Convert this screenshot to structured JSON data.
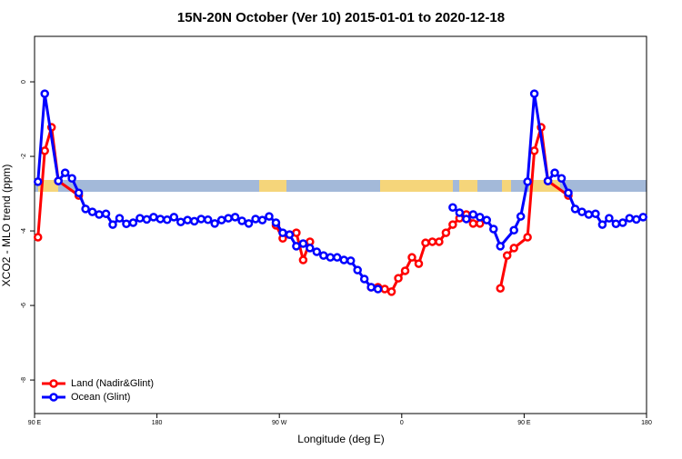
{
  "chart_data": {
    "type": "line",
    "title": "15N-20N October (Ver 10)   2015-01-01 to 2020-12-18",
    "x_label": "Longitude (deg E)",
    "y_label": "XCO2 - MLO trend (ppm)",
    "xlim": [
      90,
      540
    ],
    "ylim": [
      -8.9,
      1.22
    ],
    "xticks": [
      {
        "value": 90,
        "label": "90 E"
      },
      180,
      {
        "value": 270,
        "label": "90 W"
      },
      {
        "value": 360,
        "label": "0"
      },
      {
        "value": 450,
        "label": "90 E"
      },
      {
        "value": 540,
        "label": "180"
      }
    ],
    "yticks": [
      0,
      -2,
      -4,
      -6,
      -8
    ],
    "legend": "bottom-left",
    "series": [
      {
        "name": "Land (Nadir&Glint)",
        "color": "#ff0000",
        "x": [
          92.5,
          97.5,
          102.5,
          107.5,
          122.5,
          125,
          267.5,
          272.5,
          277.5,
          282.5,
          287.5,
          292.5,
          300,
          337.5,
          342.5,
          347.5,
          352.5,
          357.5,
          362.5,
          367.5,
          372.5,
          377.5,
          382.5,
          387.5,
          392.5,
          397.5,
          402.5,
          407.5,
          412.5,
          417.5,
          425,
          432.5,
          437.5,
          442.5,
          452.5,
          457.5,
          462.5,
          467.5,
          482.5
        ],
        "values": [
          -4.17,
          -1.85,
          -1.22,
          -2.66,
          -3.05,
          null,
          -3.85,
          -4.2,
          -4.1,
          -4.05,
          -4.78,
          -4.29,
          null,
          -5.51,
          -5.51,
          -5.56,
          -5.63,
          -5.27,
          -5.07,
          -4.71,
          -4.88,
          -4.32,
          -4.29,
          -4.29,
          -4.05,
          -3.83,
          -3.66,
          -3.56,
          -3.8,
          -3.8,
          null,
          -5.54,
          -4.66,
          -4.46,
          -4.17,
          -1.85,
          -1.22,
          -2.66,
          -3.05
        ]
      },
      {
        "name": "Ocean (Glint)",
        "color": "#0000ff",
        "x": [
          92.5,
          97.5,
          107.5,
          112.5,
          117.5,
          122.5,
          127.5,
          132.5,
          137.5,
          142.5,
          147.5,
          152.5,
          157.5,
          162.5,
          167.5,
          172.5,
          177.5,
          182.5,
          187.5,
          192.5,
          197.5,
          202.5,
          207.5,
          212.5,
          217.5,
          222.5,
          227.5,
          232.5,
          237.5,
          242.5,
          247.5,
          252.5,
          257.5,
          262.5,
          267.5,
          272.5,
          277.5,
          282.5,
          287.5,
          292.5,
          297.5,
          302.5,
          307.5,
          312.5,
          317.5,
          322.5,
          327.5,
          332.5,
          337.5,
          342.5,
          370,
          397.5,
          402.5,
          407.5,
          412.5,
          417.5,
          422.5,
          427.5,
          432.5,
          442.5,
          447.5,
          452.5,
          457.5,
          467.5,
          472.5,
          477.5,
          482.5,
          487.5,
          492.5,
          497.5,
          502.5,
          507.5,
          512.5,
          517.5,
          522.5,
          527.5,
          532.5,
          537.5
        ],
        "values": [
          -2.68,
          -0.32,
          -2.66,
          -2.44,
          -2.59,
          -2.98,
          -3.41,
          -3.49,
          -3.56,
          -3.54,
          -3.83,
          -3.66,
          -3.81,
          -3.78,
          -3.66,
          -3.69,
          -3.63,
          -3.68,
          -3.7,
          -3.63,
          -3.76,
          -3.71,
          -3.74,
          -3.68,
          -3.7,
          -3.8,
          -3.71,
          -3.66,
          -3.63,
          -3.73,
          -3.8,
          -3.68,
          -3.71,
          -3.61,
          -3.78,
          -4.05,
          -4.1,
          -4.41,
          -4.34,
          -4.46,
          -4.56,
          -4.66,
          -4.71,
          -4.71,
          -4.78,
          -4.8,
          -5.05,
          -5.29,
          -5.51,
          -5.56,
          null,
          -3.37,
          -3.51,
          -3.68,
          -3.56,
          -3.63,
          -3.71,
          -3.95,
          -4.41,
          -3.98,
          -3.61,
          -2.68,
          -0.32,
          -2.66,
          -2.44,
          -2.59,
          -2.98,
          -3.41,
          -3.49,
          -3.56,
          -3.54,
          -3.83,
          -3.66,
          -3.81,
          -3.78,
          -3.66,
          -3.69,
          -3.63
        ]
      }
    ]
  }
}
